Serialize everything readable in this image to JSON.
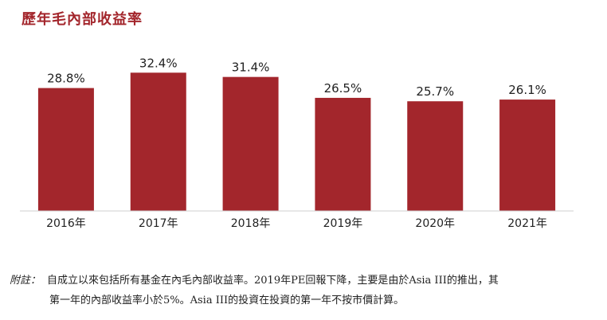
{
  "title": "歷年毛內部收益率",
  "chart_data": {
    "type": "bar",
    "title": "歷年毛內部收益率",
    "categories": [
      "2016年",
      "2017年",
      "2018年",
      "2019年",
      "2020年",
      "2021年"
    ],
    "values": [
      28.8,
      32.4,
      31.4,
      26.5,
      25.7,
      26.1
    ],
    "data_labels": [
      "28.8%",
      "32.4%",
      "31.4%",
      "26.5%",
      "25.7%",
      "26.1%"
    ],
    "ylim": [
      0,
      36
    ],
    "bar_color": "#a3262c",
    "grid": false,
    "legend": "none"
  },
  "footnote": {
    "label": "附註：",
    "line1": "自成立以來包括所有基金在內毛內部收益率。2019年PE回報下降，主要是由於Asia III的推出，其",
    "line2": "第一年的內部收益率小於5%。Asia III的投資在投資的第一年不按市價計算。"
  }
}
